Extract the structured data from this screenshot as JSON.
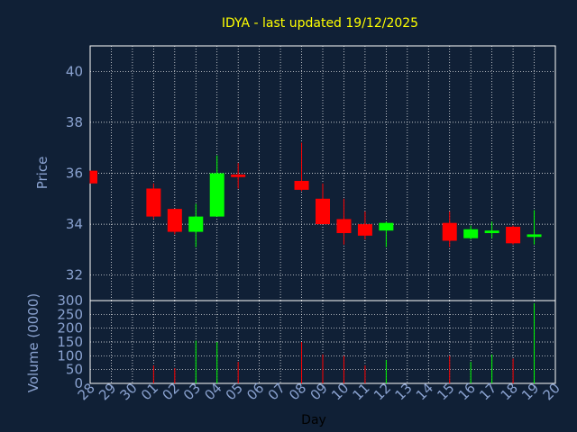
{
  "colors": {
    "background": "#102036",
    "plot_border": "#ffffff",
    "grid": "#ffffff",
    "up": "#00ff00",
    "down": "#ff0000",
    "text": "#8aa2d0",
    "title": "#ffff00"
  },
  "chart_data": [
    {
      "type": "candlestick",
      "title": "IDYA - last updated 19/12/2025",
      "ylabel": "Price",
      "ylim": [
        31,
        41
      ],
      "yticks": [
        32,
        34,
        36,
        38,
        40
      ],
      "grid": true,
      "x_ticks": [
        "28",
        "29",
        "30",
        "01",
        "02",
        "03",
        "04",
        "05",
        "06",
        "07",
        "08",
        "09",
        "10",
        "11",
        "12",
        "13",
        "14",
        "15",
        "16",
        "17",
        "18",
        "19",
        "20"
      ],
      "candles": [
        {
          "x": "28",
          "open": 36.1,
          "high": 36.1,
          "low": 35.6,
          "close": 35.6
        },
        {
          "x": "01",
          "open": 35.4,
          "high": 35.6,
          "low": 34.2,
          "close": 34.3
        },
        {
          "x": "02",
          "open": 34.6,
          "high": 34.6,
          "low": 33.6,
          "close": 33.7
        },
        {
          "x": "03",
          "open": 33.7,
          "high": 34.8,
          "low": 33.1,
          "close": 34.3
        },
        {
          "x": "04",
          "open": 34.3,
          "high": 36.7,
          "low": 34.3,
          "close": 36.0
        },
        {
          "x": "05",
          "open": 35.95,
          "high": 36.4,
          "low": 35.4,
          "close": 35.85
        },
        {
          "x": "08",
          "open": 35.7,
          "high": 37.2,
          "low": 35.3,
          "close": 35.35
        },
        {
          "x": "09",
          "open": 35.0,
          "high": 35.6,
          "low": 34.0,
          "close": 34.0
        },
        {
          "x": "10",
          "open": 34.2,
          "high": 35.0,
          "low": 33.2,
          "close": 33.65
        },
        {
          "x": "11",
          "open": 34.0,
          "high": 34.5,
          "low": 33.4,
          "close": 33.55
        },
        {
          "x": "12",
          "open": 33.75,
          "high": 34.1,
          "low": 33.1,
          "close": 34.05
        },
        {
          "x": "15",
          "open": 34.05,
          "high": 34.5,
          "low": 33.1,
          "close": 33.35
        },
        {
          "x": "16",
          "open": 33.45,
          "high": 33.95,
          "low": 33.4,
          "close": 33.8
        },
        {
          "x": "17",
          "open": 33.65,
          "high": 34.1,
          "low": 33.45,
          "close": 33.75
        },
        {
          "x": "18",
          "open": 33.9,
          "high": 33.95,
          "low": 33.2,
          "close": 33.25
        },
        {
          "x": "19",
          "open": 33.5,
          "high": 34.55,
          "low": 33.2,
          "close": 33.6
        }
      ]
    },
    {
      "type": "bar",
      "ylabel": "Volume (0000)",
      "xlabel": "Day",
      "ylim": [
        0,
        300
      ],
      "yticks": [
        0,
        50,
        100,
        150,
        200,
        250,
        300
      ],
      "grid": true,
      "x_ticks": [
        "28",
        "29",
        "30",
        "01",
        "02",
        "03",
        "04",
        "05",
        "06",
        "07",
        "08",
        "09",
        "10",
        "11",
        "12",
        "13",
        "14",
        "15",
        "16",
        "17",
        "18",
        "19",
        "20"
      ],
      "bars": [
        {
          "x": "28",
          "value": 0,
          "dir": "down"
        },
        {
          "x": "01",
          "value": 65,
          "dir": "down"
        },
        {
          "x": "02",
          "value": 55,
          "dir": "down"
        },
        {
          "x": "03",
          "value": 155,
          "dir": "up"
        },
        {
          "x": "04",
          "value": 150,
          "dir": "up"
        },
        {
          "x": "05",
          "value": 78,
          "dir": "down"
        },
        {
          "x": "08",
          "value": 150,
          "dir": "down"
        },
        {
          "x": "09",
          "value": 105,
          "dir": "down"
        },
        {
          "x": "10",
          "value": 100,
          "dir": "down"
        },
        {
          "x": "11",
          "value": 65,
          "dir": "down"
        },
        {
          "x": "12",
          "value": 85,
          "dir": "up"
        },
        {
          "x": "15",
          "value": 100,
          "dir": "down"
        },
        {
          "x": "16",
          "value": 78,
          "dir": "up"
        },
        {
          "x": "17",
          "value": 105,
          "dir": "up"
        },
        {
          "x": "18",
          "value": 90,
          "dir": "down"
        },
        {
          "x": "19",
          "value": 290,
          "dir": "up"
        }
      ]
    }
  ]
}
